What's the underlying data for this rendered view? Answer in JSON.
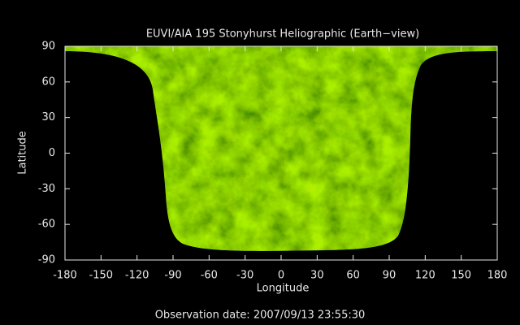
{
  "chart_data": {
    "type": "image",
    "title": "EUVI/AIA 195 Stonyhurst Heliographic (Earth−view)",
    "x_label": "Longitude",
    "y_label": "Latitude",
    "xlim": [
      -180,
      180
    ],
    "xticks": [
      -180,
      -150,
      -120,
      -90,
      -60,
      -30,
      0,
      30,
      60,
      90,
      120,
      150,
      180
    ],
    "ylim": [
      -90,
      90
    ],
    "yticks": [
      -90,
      -60,
      -30,
      0,
      30,
      60,
      90
    ],
    "footer": "Observation date: 2007/09/13 23:55:30"
  }
}
